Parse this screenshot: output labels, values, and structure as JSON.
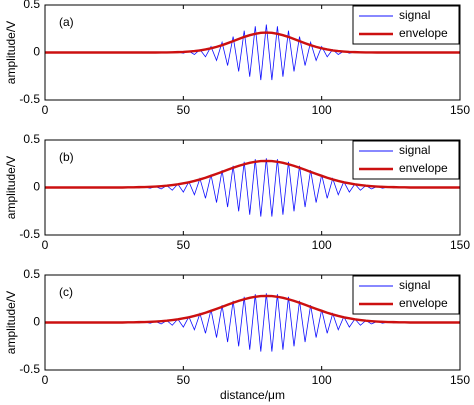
{
  "chart_data": [
    {
      "type": "line",
      "panel_label": "(a)",
      "y_label": "amplitude/V",
      "x": [
        0,
        2,
        4,
        6,
        8,
        10,
        12,
        14,
        16,
        18,
        20,
        22,
        24,
        26,
        28,
        30,
        32,
        34,
        36,
        38,
        40,
        42,
        44,
        46,
        48,
        50,
        52,
        54,
        56,
        58,
        60,
        62,
        64,
        66,
        68,
        70,
        72,
        74,
        76,
        78,
        80,
        82,
        84,
        86,
        88,
        90,
        92,
        94,
        96,
        98,
        100,
        102,
        104,
        106,
        108,
        110,
        112,
        114,
        116,
        118,
        120,
        122,
        124,
        126,
        128,
        130,
        132,
        134,
        136,
        138,
        140,
        142,
        144,
        146,
        148,
        150
      ],
      "series": [
        {
          "name": "signal",
          "color": "#1010ff",
          "values": [
            0,
            0,
            0,
            0,
            0,
            0,
            0,
            0,
            0,
            0,
            0,
            0,
            0,
            0,
            0,
            0,
            0,
            0,
            0,
            0,
            0,
            -0.001,
            0.001,
            -0.003,
            0.006,
            -0.008,
            0.014,
            -0.021,
            0.031,
            -0.045,
            0.062,
            -0.083,
            0.108,
            -0.137,
            0.168,
            -0.199,
            0.23,
            -0.255,
            0.276,
            -0.29,
            0.294,
            -0.29,
            0.276,
            -0.255,
            0.23,
            -0.199,
            0.168,
            -0.137,
            0.108,
            -0.083,
            0.062,
            -0.045,
            0.031,
            -0.021,
            0.014,
            -0.008,
            0.006,
            -0.003,
            0.001,
            -0.001,
            0,
            0,
            0,
            0,
            0,
            0,
            0,
            0,
            0,
            0,
            0,
            0,
            0,
            0,
            0,
            0
          ]
        },
        {
          "name": "envelope",
          "color": "#cc1010",
          "values": [
            0,
            0,
            0,
            0,
            0,
            0,
            0,
            0,
            0,
            0,
            0,
            0,
            0,
            0,
            0,
            0,
            0,
            0,
            0,
            0,
            0,
            0.001,
            0.001,
            0.002,
            0.004,
            0.006,
            0.01,
            0.015,
            0.022,
            0.032,
            0.044,
            0.059,
            0.077,
            0.098,
            0.12,
            0.142,
            0.164,
            0.182,
            0.197,
            0.207,
            0.21,
            0.207,
            0.197,
            0.182,
            0.164,
            0.142,
            0.12,
            0.098,
            0.077,
            0.059,
            0.044,
            0.032,
            0.022,
            0.015,
            0.01,
            0.006,
            0.004,
            0.002,
            0.001,
            0.001,
            0,
            0,
            0,
            0,
            0,
            0,
            0,
            0,
            0,
            0,
            0,
            0,
            0,
            0,
            0,
            0
          ]
        }
      ],
      "xlim": [
        0,
        150
      ],
      "xticks": [
        0,
        50,
        100,
        150
      ],
      "ylim": [
        -0.5,
        0.5
      ],
      "yticks": [
        -0.5,
        0,
        0.5
      ],
      "legend": "upper right"
    },
    {
      "type": "line",
      "panel_label": "(b)",
      "y_label": "amplitude/V",
      "x": [
        0,
        2,
        4,
        6,
        8,
        10,
        12,
        14,
        16,
        18,
        20,
        22,
        24,
        26,
        28,
        30,
        32,
        34,
        36,
        38,
        40,
        42,
        44,
        46,
        48,
        50,
        52,
        54,
        56,
        58,
        60,
        62,
        64,
        66,
        68,
        70,
        72,
        74,
        76,
        78,
        80,
        82,
        84,
        86,
        88,
        90,
        92,
        94,
        96,
        98,
        100,
        102,
        104,
        106,
        108,
        110,
        112,
        114,
        116,
        118,
        120,
        122,
        124,
        126,
        128,
        130,
        132,
        134,
        136,
        138,
        140,
        142,
        144,
        146,
        148,
        150
      ],
      "series": [
        {
          "name": "signal",
          "color": "#1010ff",
          "values": [
            0,
            0,
            0,
            0,
            0,
            0,
            0,
            0,
            0,
            0,
            0,
            0,
            0,
            0,
            0,
            -0.002,
            0.002,
            -0.004,
            0.006,
            -0.008,
            0.011,
            -0.015,
            0.021,
            -0.029,
            0.037,
            -0.048,
            0.061,
            -0.076,
            0.094,
            -0.113,
            0.135,
            -0.158,
            0.182,
            -0.206,
            0.229,
            -0.251,
            0.27,
            -0.286,
            0.298,
            -0.306,
            0.308,
            -0.306,
            0.298,
            -0.286,
            0.27,
            -0.251,
            0.229,
            -0.206,
            0.182,
            -0.158,
            0.135,
            -0.113,
            0.094,
            -0.076,
            0.061,
            -0.048,
            0.037,
            -0.029,
            0.021,
            -0.015,
            0.011,
            -0.008,
            0.006,
            -0.004,
            0.002,
            -0.002,
            0,
            0,
            0,
            0,
            0,
            0,
            0,
            0,
            0,
            0
          ]
        },
        {
          "name": "envelope",
          "color": "#cc1010",
          "values": [
            0,
            0,
            0,
            0,
            0,
            0,
            0,
            0,
            0,
            0,
            0,
            0,
            0,
            0,
            0,
            0.002,
            0.002,
            0.004,
            0.005,
            0.007,
            0.01,
            0.014,
            0.019,
            0.026,
            0.034,
            0.044,
            0.055,
            0.069,
            0.085,
            0.103,
            0.123,
            0.144,
            0.165,
            0.187,
            0.208,
            0.228,
            0.245,
            0.26,
            0.271,
            0.278,
            0.28,
            0.278,
            0.271,
            0.26,
            0.245,
            0.228,
            0.208,
            0.187,
            0.165,
            0.144,
            0.123,
            0.103,
            0.085,
            0.069,
            0.055,
            0.044,
            0.034,
            0.026,
            0.019,
            0.014,
            0.01,
            0.007,
            0.005,
            0.004,
            0.002,
            0.002,
            0,
            0,
            0,
            0,
            0,
            0,
            0,
            0,
            0,
            0
          ]
        }
      ],
      "xlim": [
        0,
        150
      ],
      "xticks": [
        0,
        50,
        100,
        150
      ],
      "ylim": [
        -0.5,
        0.5
      ],
      "yticks": [
        -0.5,
        0,
        0.5
      ],
      "legend": "upper right"
    },
    {
      "type": "line",
      "panel_label": "(c)",
      "y_label": "amplitude/V",
      "x_label": "distance/μm",
      "x": [
        0,
        2,
        4,
        6,
        8,
        10,
        12,
        14,
        16,
        18,
        20,
        22,
        24,
        26,
        28,
        30,
        32,
        34,
        36,
        38,
        40,
        42,
        44,
        46,
        48,
        50,
        52,
        54,
        56,
        58,
        60,
        62,
        64,
        66,
        68,
        70,
        72,
        74,
        76,
        78,
        80,
        82,
        84,
        86,
        88,
        90,
        92,
        94,
        96,
        98,
        100,
        102,
        104,
        106,
        108,
        110,
        112,
        114,
        116,
        118,
        120,
        122,
        124,
        126,
        128,
        130,
        132,
        134,
        136,
        138,
        140,
        142,
        144,
        146,
        148,
        150
      ],
      "series": [
        {
          "name": "signal",
          "color": "#1010ff",
          "values": [
            0,
            0,
            0,
            0,
            0,
            0,
            0,
            0,
            0,
            0,
            0,
            0,
            0,
            0,
            0,
            -0.002,
            0.002,
            -0.004,
            0.006,
            -0.008,
            0.011,
            -0.015,
            0.021,
            -0.029,
            0.037,
            -0.048,
            0.061,
            -0.076,
            0.094,
            -0.113,
            0.135,
            -0.158,
            0.182,
            -0.206,
            0.229,
            -0.251,
            0.27,
            -0.286,
            0.298,
            -0.306,
            0.308,
            -0.306,
            0.298,
            -0.286,
            0.27,
            -0.251,
            0.229,
            -0.206,
            0.182,
            -0.158,
            0.135,
            -0.113,
            0.094,
            -0.076,
            0.061,
            -0.048,
            0.037,
            -0.029,
            0.021,
            -0.015,
            0.011,
            -0.008,
            0.006,
            -0.004,
            0.002,
            -0.002,
            0,
            0,
            0,
            0,
            0,
            0,
            0,
            0,
            0,
            0
          ]
        },
        {
          "name": "envelope",
          "color": "#cc1010",
          "values": [
            0,
            0,
            0,
            0,
            0,
            0,
            0,
            0,
            0,
            0,
            0,
            0,
            0,
            0,
            0,
            0.002,
            0.002,
            0.004,
            0.005,
            0.007,
            0.01,
            0.014,
            0.019,
            0.026,
            0.034,
            0.044,
            0.055,
            0.069,
            0.085,
            0.103,
            0.123,
            0.144,
            0.165,
            0.187,
            0.208,
            0.228,
            0.245,
            0.26,
            0.271,
            0.278,
            0.28,
            0.278,
            0.271,
            0.26,
            0.245,
            0.228,
            0.208,
            0.187,
            0.165,
            0.144,
            0.123,
            0.103,
            0.085,
            0.069,
            0.055,
            0.044,
            0.034,
            0.026,
            0.019,
            0.014,
            0.01,
            0.007,
            0.005,
            0.004,
            0.002,
            0.002,
            0,
            0,
            0,
            0,
            0,
            0,
            0,
            0,
            0,
            0
          ]
        }
      ],
      "xlim": [
        0,
        150
      ],
      "xticks": [
        0,
        50,
        100,
        150
      ],
      "ylim": [
        -0.5,
        0.5
      ],
      "yticks": [
        -0.5,
        0,
        0.5
      ],
      "legend": "upper right"
    }
  ]
}
